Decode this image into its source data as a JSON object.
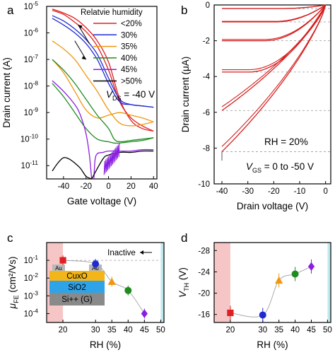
{
  "colors": {
    "lt20": "#e02020",
    "rh30": "#1f2bd0",
    "rh35": "#f0960f",
    "rh40": "#208c20",
    "rh45": "#8a1fe0",
    "gt50": "#000000",
    "pink_band": "#f6c6c6",
    "cyan_band": "#bfe9ef"
  },
  "chart_data": [
    {
      "panel": "a",
      "type": "line",
      "xlabel": "Gate voltage (V)",
      "ylabel": "Drain current (A)",
      "ylog": true,
      "xlim": [
        -55,
        43
      ],
      "ylim_exp": [
        -11.5,
        -5
      ],
      "xticks": [
        -40,
        -20,
        0,
        20,
        40
      ],
      "xtick_labels": [
        "-40",
        "-20",
        "0",
        "20",
        "40"
      ],
      "yticks_exp": [
        -11,
        -10,
        -9,
        -8,
        -7,
        -6,
        -5
      ],
      "ytick_labels": [
        "10",
        "10",
        "10",
        "10",
        "10",
        "10",
        "10"
      ],
      "ytick_sups": [
        "-11",
        "-10",
        "-9",
        "-8",
        "-7",
        "-6",
        "-5"
      ],
      "legend_title": "Relatvie humidity",
      "legend_entries": [
        "<20%",
        "30%",
        "35%",
        "40%",
        "45%",
        ">50%"
      ],
      "annotation_main": "V",
      "annotation_sub": "DS",
      "annotation_rest": " = -40 V",
      "series": [
        {
          "name": "<20%",
          "log_y": [
            [
              -50,
              -5.1
            ],
            [
              -40,
              -5.25
            ],
            [
              -30,
              -5.45
            ],
            [
              -20,
              -5.8
            ],
            [
              -10,
              -6.3
            ],
            [
              0,
              -7.1
            ],
            [
              10,
              -8.5
            ],
            [
              20,
              -9.3
            ],
            [
              30,
              -9.6
            ],
            [
              40,
              -9.7
            ]
          ],
          "log_y_return": [
            [
              40,
              -9.7
            ],
            [
              30,
              -9.5
            ],
            [
              20,
              -9.2
            ],
            [
              10,
              -8.6
            ],
            [
              0,
              -7.4
            ],
            [
              -10,
              -6.5
            ],
            [
              -20,
              -5.95
            ],
            [
              -30,
              -5.6
            ],
            [
              -40,
              -5.3
            ],
            [
              -50,
              -5.15
            ]
          ]
        },
        {
          "name": "30%",
          "log_y": [
            [
              -50,
              -5.35
            ],
            [
              -40,
              -5.55
            ],
            [
              -30,
              -5.85
            ],
            [
              -20,
              -6.25
            ],
            [
              -10,
              -6.8
            ],
            [
              0,
              -7.7
            ],
            [
              10,
              -8.5
            ],
            [
              20,
              -8.7
            ],
            [
              30,
              -8.75
            ],
            [
              40,
              -8.8
            ]
          ],
          "log_y_return": [
            [
              40,
              -8.8
            ],
            [
              30,
              -8.75
            ],
            [
              20,
              -8.7
            ],
            [
              10,
              -8.6
            ],
            [
              0,
              -7.9
            ],
            [
              -10,
              -7.0
            ],
            [
              -20,
              -6.4
            ],
            [
              -30,
              -6.0
            ],
            [
              -40,
              -5.7
            ],
            [
              -50,
              -5.45
            ]
          ]
        },
        {
          "name": "35%",
          "log_y": [
            [
              -50,
              -6.3
            ],
            [
              -40,
              -6.6
            ],
            [
              -30,
              -7.0
            ],
            [
              -20,
              -7.6
            ],
            [
              -10,
              -8.2
            ],
            [
              0,
              -8.9
            ],
            [
              10,
              -9.4
            ],
            [
              20,
              -9.5
            ],
            [
              30,
              -9.45
            ],
            [
              40,
              -9.35
            ]
          ],
          "log_y_return": [
            [
              40,
              -9.35
            ],
            [
              30,
              -9.2
            ],
            [
              20,
              -9.1
            ],
            [
              10,
              -9.0
            ],
            [
              0,
              -9.1
            ],
            [
              -10,
              -9.2
            ],
            [
              -20,
              -8.9
            ],
            [
              -30,
              -8.2
            ],
            [
              -40,
              -7.5
            ],
            [
              -50,
              -7.0
            ]
          ]
        },
        {
          "name": "40%",
          "log_y": [
            [
              -50,
              -7.0
            ],
            [
              -40,
              -7.4
            ],
            [
              -30,
              -7.9
            ],
            [
              -20,
              -8.5
            ],
            [
              -10,
              -9.1
            ],
            [
              0,
              -9.6
            ],
            [
              5,
              -10.0
            ],
            [
              10,
              -10.1
            ],
            [
              20,
              -10.05
            ],
            [
              30,
              -10.0
            ],
            [
              40,
              -9.95
            ]
          ],
          "log_y_return": [
            [
              40,
              -9.95
            ],
            [
              30,
              -10.05
            ],
            [
              20,
              -10.1
            ],
            [
              10,
              -10.15
            ],
            [
              5,
              -10.15
            ],
            [
              0,
              -10.1
            ],
            [
              -10,
              -10.0
            ],
            [
              -20,
              -9.6
            ],
            [
              -30,
              -9.0
            ],
            [
              -40,
              -8.4
            ],
            [
              -50,
              -7.9
            ]
          ]
        },
        {
          "name": "45%",
          "log_y": [
            [
              -50,
              -7.8
            ],
            [
              -40,
              -8.2
            ],
            [
              -30,
              -8.7
            ],
            [
              -25,
              -9.1
            ],
            [
              -20,
              -9.8
            ],
            [
              -17,
              -10.6
            ],
            [
              -15,
              -11.5
            ]
          ],
          "log_y_return": [
            [
              -13,
              -11.5
            ],
            [
              -12,
              -10.8
            ],
            [
              -10,
              -10.55
            ],
            [
              -5,
              -10.5
            ],
            [
              0,
              -10.45
            ],
            [
              10,
              -10.45
            ],
            [
              20,
              -10.45
            ],
            [
              30,
              -10.4
            ],
            [
              40,
              -10.4
            ]
          ]
        },
        {
          "name": ">50%",
          "log_y": [
            [
              -50,
              -11.2
            ],
            [
              -45,
              -10.9
            ],
            [
              -40,
              -10.7
            ],
            [
              -35,
              -10.75
            ],
            [
              -30,
              -10.9
            ],
            [
              -25,
              -11.1
            ],
            [
              -20,
              -11.4
            ],
            [
              -15,
              -11.5
            ]
          ],
          "log_y_return": [
            [
              -15,
              -11.5
            ],
            [
              -5,
              -10.75
            ],
            [
              0,
              -10.6
            ],
            [
              10,
              -10.5
            ],
            [
              20,
              -10.5
            ],
            [
              30,
              -10.45
            ],
            [
              40,
              -10.45
            ]
          ]
        }
      ]
    },
    {
      "panel": "b",
      "type": "line",
      "xlabel": "Drain voltage (V)",
      "ylabel": "Drain current (μA)",
      "xlim": [
        -43,
        2
      ],
      "ylim": [
        -10,
        0
      ],
      "xticks": [
        -40,
        -30,
        -20,
        -10,
        0
      ],
      "xtick_labels": [
        "-40",
        "-30",
        "-20",
        "-10",
        "0"
      ],
      "yticks": [
        0,
        -2,
        -4,
        -6,
        -8,
        -10
      ],
      "ytick_labels": [
        "0",
        "-2",
        "-4",
        "-6",
        "-8",
        "-10"
      ],
      "gridlines_y": [
        -0.2,
        -0.95,
        -2.0,
        -3.75,
        -5.9,
        -8.2
      ],
      "annotation_rh": "RH = 20%",
      "annotation_main": "V",
      "annotation_sub": "GS",
      "annotation_rest": " = 0 to -50 V",
      "series_levels": [
        -0.2,
        -0.95,
        -2.0,
        -3.75,
        -5.9,
        -8.2
      ]
    },
    {
      "panel": "c",
      "type": "scatter",
      "xlabel": "RH (%)",
      "ylabel_main": "μ",
      "ylabel_sub": "FE",
      "ylabel_rest": " (cm²/Vs)",
      "ylog": true,
      "xlim": [
        15,
        51
      ],
      "ylim_exp": [
        -4.5,
        0
      ],
      "xticks": [
        20,
        30,
        35,
        40,
        45,
        50
      ],
      "xtick_labels": [
        "20",
        "30",
        "35",
        "40",
        "45",
        "50"
      ],
      "yticks_exp": [
        -4,
        -3,
        -2,
        -1
      ],
      "ytick_labels": [
        "10",
        "10",
        "10",
        "10"
      ],
      "ytick_sups": [
        "-4",
        "-3",
        "-2",
        "-1"
      ],
      "inactive_label": "Inactive",
      "device_layers": [
        "Au",
        "Au",
        "Cu",
        "x",
        "O",
        "SiO",
        "2",
        "Si",
        "++",
        " (G)"
      ],
      "points": [
        {
          "x": 20,
          "log_y": -1.0,
          "color": "lt20",
          "marker": "square"
        },
        {
          "x": 30,
          "log_y": -1.2,
          "color": "rh30",
          "marker": "circle"
        },
        {
          "x": 35,
          "log_y": -2.2,
          "color": "rh35",
          "marker": "triangle"
        },
        {
          "x": 40,
          "log_y": -2.7,
          "color": "rh40",
          "marker": "circle"
        },
        {
          "x": 45,
          "log_y": -4.0,
          "color": "rh45",
          "marker": "diamond"
        }
      ]
    },
    {
      "panel": "d",
      "type": "scatter",
      "xlabel": "RH (%)",
      "ylabel_main": "V",
      "ylabel_sub": "TH",
      "ylabel_rest": " (V)",
      "xlim": [
        15,
        51
      ],
      "ylim": [
        -14.5,
        -29.5
      ],
      "xticks": [
        20,
        30,
        35,
        40,
        45,
        50
      ],
      "xtick_labels": [
        "20",
        "30",
        "35",
        "40",
        "45",
        "50"
      ],
      "yticks": [
        -16,
        -20,
        -24,
        -28
      ],
      "ytick_labels": [
        "-16",
        "-20",
        "-24",
        "-28"
      ],
      "points": [
        {
          "x": 20,
          "y": -16.3,
          "color": "lt20",
          "marker": "square"
        },
        {
          "x": 30,
          "y": -15.9,
          "color": "rh30",
          "marker": "circle"
        },
        {
          "x": 35,
          "y": -22.4,
          "color": "rh35",
          "marker": "triangle"
        },
        {
          "x": 40,
          "y": -23.6,
          "color": "rh40",
          "marker": "circle"
        },
        {
          "x": 45,
          "y": -25.0,
          "color": "rh45",
          "marker": "diamond"
        }
      ]
    }
  ],
  "panel_labels": [
    "a",
    "b",
    "c",
    "d"
  ]
}
